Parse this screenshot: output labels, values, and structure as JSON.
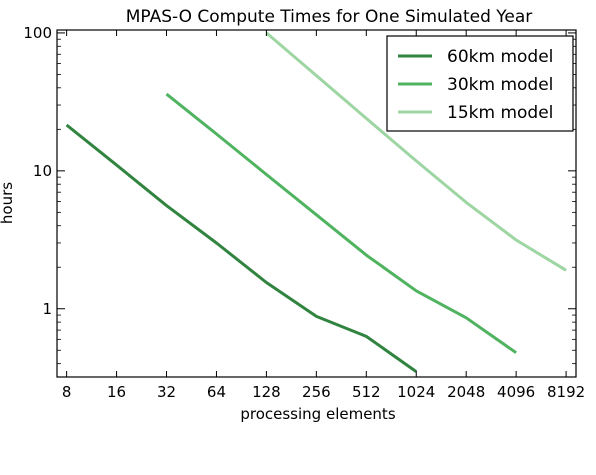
{
  "chart_data": {
    "type": "line",
    "title": "MPAS-O Compute Times for One Simulated Year",
    "xlabel": "processing elements",
    "ylabel": "hours",
    "x_scale": "log2",
    "y_scale": "log10",
    "xlim": [
      7,
      9400
    ],
    "ylim": [
      0.32,
      105
    ],
    "x_ticks": [
      8,
      16,
      32,
      64,
      128,
      256,
      512,
      1024,
      2048,
      4096,
      8192
    ],
    "x_tick_labels": [
      "8",
      "16",
      "32",
      "64",
      "128",
      "256",
      "512",
      "1024",
      "2048",
      "4096",
      "8192"
    ],
    "y_ticks": [
      1,
      10,
      100
    ],
    "y_tick_labels": [
      "1",
      "10",
      "100"
    ],
    "grid": false,
    "legend_position": "top-right",
    "series": [
      {
        "name": "60km model",
        "color": "#31843f",
        "x": [
          8,
          16,
          32,
          64,
          128,
          256,
          512,
          1024
        ],
        "y": [
          21.5,
          11.0,
          5.6,
          3.0,
          1.55,
          0.88,
          0.63,
          0.35
        ]
      },
      {
        "name": "30km model",
        "color": "#4fb35f",
        "x": [
          32,
          64,
          128,
          256,
          512,
          1024,
          2048,
          4096
        ],
        "y": [
          36,
          18.5,
          9.4,
          4.8,
          2.45,
          1.35,
          0.86,
          0.48
        ]
      },
      {
        "name": "15km model",
        "color": "#9dd5a3",
        "x": [
          128,
          256,
          512,
          1024,
          2048,
          4096,
          8192
        ],
        "y": [
          100,
          49,
          24,
          11.8,
          5.9,
          3.15,
          1.9
        ]
      }
    ]
  }
}
